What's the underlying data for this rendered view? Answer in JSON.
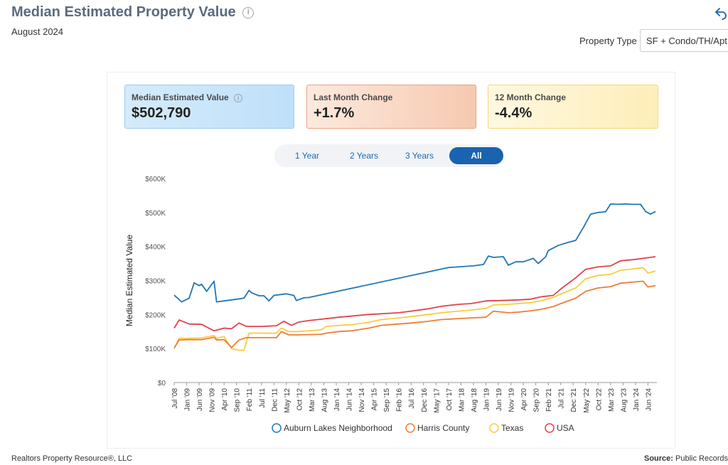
{
  "header": {
    "title": "Median Estimated Property Value",
    "date": "August 2024",
    "property_type_label": "Property Type",
    "property_type_value": "SF + Condo/TH/Apt"
  },
  "cards": {
    "median": {
      "label": "Median Estimated Value",
      "value": "$502,790"
    },
    "last_month": {
      "label": "Last Month Change",
      "value": "+1.7%"
    },
    "twelve_month": {
      "label": "12 Month Change",
      "value": "-4.4%"
    }
  },
  "range_buttons": [
    {
      "label": "1 Year",
      "active": false
    },
    {
      "label": "2 Years",
      "active": false
    },
    {
      "label": "3 Years",
      "active": false
    },
    {
      "label": "All",
      "active": true
    }
  ],
  "footer": {
    "left": "Realtors Property Resource®, LLC",
    "source_label": "Source:",
    "source_value": "Public Records"
  },
  "colors": {
    "auburn": "#1f77b4",
    "harris": "#ee7d34",
    "texas": "#f7cd3c",
    "usa": "#e0434b"
  },
  "chart_data": {
    "type": "line",
    "title": "",
    "xlabel": "",
    "ylabel": "Median Estimated Value",
    "ylim": [
      0,
      600000
    ],
    "yticks": [
      0,
      100000,
      200000,
      300000,
      400000,
      500000,
      600000
    ],
    "ytick_labels": [
      "$0",
      "$100K",
      "$200K",
      "$300K",
      "$400K",
      "$500K",
      "$600K"
    ],
    "x_start": "2008-07",
    "x_end": "2024-08",
    "x_tick_labels": [
      "Jul '08",
      "Jan '09",
      "Jun '09",
      "Nov '09",
      "Apr '10",
      "Sep '10",
      "Feb '11",
      "Jul '11",
      "Dec '11",
      "May '12",
      "Oct '12",
      "Mar '13",
      "Aug '13",
      "Jan '14",
      "Jun '14",
      "Nov '14",
      "Apr '15",
      "Sep '15",
      "Feb '16",
      "Jul '16",
      "Dec '16",
      "May '17",
      "Oct '17",
      "Mar '18",
      "Aug '18",
      "Jan '19",
      "Jun '19",
      "Nov '19",
      "Apr '20",
      "Sep '20",
      "Feb '21",
      "Jul '21",
      "Dec '21",
      "May '22",
      "Oct '22",
      "Mar '23",
      "Aug '23",
      "Jan '24",
      "Jun '24"
    ],
    "legend_position": "bottom",
    "series": [
      {
        "name": "Auburn Lakes Neighborhood",
        "color_key": "auburn",
        "points": [
          [
            "2008-07",
            257000
          ],
          [
            "2008-10",
            237000
          ],
          [
            "2009-01",
            248000
          ],
          [
            "2009-03",
            293000
          ],
          [
            "2009-05",
            285000
          ],
          [
            "2009-06",
            289000
          ],
          [
            "2009-08",
            268000
          ],
          [
            "2009-11",
            298000
          ],
          [
            "2009-12",
            237000
          ],
          [
            "2010-03",
            240000
          ],
          [
            "2010-06",
            243000
          ],
          [
            "2010-09",
            246000
          ],
          [
            "2010-11",
            248000
          ],
          [
            "2011-01",
            271000
          ],
          [
            "2011-02",
            264000
          ],
          [
            "2011-05",
            255000
          ],
          [
            "2011-07",
            255000
          ],
          [
            "2011-09",
            240000
          ],
          [
            "2011-11",
            256000
          ],
          [
            "2012-04",
            261000
          ],
          [
            "2012-07",
            256000
          ],
          [
            "2012-08",
            241000
          ],
          [
            "2012-11",
            249000
          ],
          [
            "2013-01",
            250000
          ],
          [
            "2017-09",
            338000
          ],
          [
            "2018-07",
            343000
          ],
          [
            "2018-11",
            347000
          ],
          [
            "2019-01",
            372000
          ],
          [
            "2019-03",
            368000
          ],
          [
            "2019-07",
            370000
          ],
          [
            "2019-09",
            345000
          ],
          [
            "2019-12",
            355000
          ],
          [
            "2020-03",
            355000
          ],
          [
            "2020-07",
            365000
          ],
          [
            "2020-09",
            350000
          ],
          [
            "2020-12",
            370000
          ],
          [
            "2021-01",
            388000
          ],
          [
            "2021-05",
            403000
          ],
          [
            "2021-09",
            412000
          ],
          [
            "2021-12",
            418000
          ],
          [
            "2022-03",
            455000
          ],
          [
            "2022-06",
            495000
          ],
          [
            "2022-09",
            500000
          ],
          [
            "2022-12",
            502000
          ],
          [
            "2023-02",
            525000
          ],
          [
            "2023-05",
            524000
          ],
          [
            "2023-08",
            525000
          ],
          [
            "2023-11",
            524000
          ],
          [
            "2024-02",
            524000
          ],
          [
            "2024-04",
            503000
          ],
          [
            "2024-06",
            495000
          ],
          [
            "2024-08",
            503000
          ]
        ]
      },
      {
        "name": "Harris County",
        "color_key": "harris",
        "points": [
          [
            "2008-07",
            102000
          ],
          [
            "2008-09",
            125000
          ],
          [
            "2009-01",
            126000
          ],
          [
            "2009-06",
            126000
          ],
          [
            "2009-11",
            133000
          ],
          [
            "2009-12",
            125000
          ],
          [
            "2010-03",
            126000
          ],
          [
            "2010-06",
            103000
          ],
          [
            "2010-09",
            125000
          ],
          [
            "2010-12",
            132000
          ],
          [
            "2011-06",
            132000
          ],
          [
            "2011-12",
            132000
          ],
          [
            "2012-02",
            150000
          ],
          [
            "2012-05",
            140000
          ],
          [
            "2012-08",
            140000
          ],
          [
            "2013-01",
            141000
          ],
          [
            "2013-06",
            142000
          ],
          [
            "2013-08",
            145000
          ],
          [
            "2014-01",
            150000
          ],
          [
            "2014-06",
            152000
          ],
          [
            "2015-01",
            160000
          ],
          [
            "2015-06",
            168000
          ],
          [
            "2016-01",
            172000
          ],
          [
            "2016-06",
            175000
          ],
          [
            "2017-01",
            180000
          ],
          [
            "2017-06",
            185000
          ],
          [
            "2018-01",
            188000
          ],
          [
            "2018-06",
            190000
          ],
          [
            "2018-12",
            192000
          ],
          [
            "2019-03",
            210000
          ],
          [
            "2019-09",
            205000
          ],
          [
            "2020-01",
            207000
          ],
          [
            "2020-06",
            211000
          ],
          [
            "2020-10",
            215000
          ],
          [
            "2021-03",
            223000
          ],
          [
            "2021-06",
            232000
          ],
          [
            "2021-12",
            248000
          ],
          [
            "2022-04",
            268000
          ],
          [
            "2022-09",
            278000
          ],
          [
            "2023-02",
            282000
          ],
          [
            "2023-06",
            292000
          ],
          [
            "2023-12",
            296000
          ],
          [
            "2024-03",
            298000
          ],
          [
            "2024-05",
            281000
          ],
          [
            "2024-08",
            285000
          ]
        ]
      },
      {
        "name": "Texas",
        "color_key": "texas",
        "points": [
          [
            "2008-07",
            100000
          ],
          [
            "2008-09",
            130000
          ],
          [
            "2009-01",
            130000
          ],
          [
            "2009-06",
            131000
          ],
          [
            "2009-11",
            138000
          ],
          [
            "2009-12",
            130000
          ],
          [
            "2010-03",
            135000
          ],
          [
            "2010-06",
            100000
          ],
          [
            "2010-09",
            95000
          ],
          [
            "2010-11",
            95000
          ],
          [
            "2011-01",
            145000
          ],
          [
            "2011-06",
            145000
          ],
          [
            "2011-12",
            145000
          ],
          [
            "2012-02",
            160000
          ],
          [
            "2012-05",
            150000
          ],
          [
            "2012-08",
            150000
          ],
          [
            "2013-01",
            152000
          ],
          [
            "2013-06",
            155000
          ],
          [
            "2013-08",
            165000
          ],
          [
            "2014-01",
            168000
          ],
          [
            "2014-06",
            170000
          ],
          [
            "2015-01",
            177000
          ],
          [
            "2015-06",
            185000
          ],
          [
            "2016-01",
            190000
          ],
          [
            "2016-06",
            194000
          ],
          [
            "2017-01",
            200000
          ],
          [
            "2017-06",
            205000
          ],
          [
            "2018-01",
            210000
          ],
          [
            "2018-06",
            213000
          ],
          [
            "2018-12",
            218000
          ],
          [
            "2019-03",
            228000
          ],
          [
            "2019-09",
            230000
          ],
          [
            "2020-01",
            232000
          ],
          [
            "2020-06",
            235000
          ],
          [
            "2020-10",
            240000
          ],
          [
            "2021-03",
            250000
          ],
          [
            "2021-06",
            260000
          ],
          [
            "2021-12",
            278000
          ],
          [
            "2022-04",
            305000
          ],
          [
            "2022-09",
            315000
          ],
          [
            "2023-02",
            318000
          ],
          [
            "2023-06",
            330000
          ],
          [
            "2023-12",
            335000
          ],
          [
            "2024-03",
            338000
          ],
          [
            "2024-05",
            322000
          ],
          [
            "2024-08",
            328000
          ]
        ]
      },
      {
        "name": "USA",
        "color_key": "usa",
        "points": [
          [
            "2008-07",
            160000
          ],
          [
            "2008-09",
            184000
          ],
          [
            "2009-01",
            172000
          ],
          [
            "2009-06",
            171000
          ],
          [
            "2009-11",
            152000
          ],
          [
            "2010-03",
            160000
          ],
          [
            "2010-06",
            158000
          ],
          [
            "2010-09",
            175000
          ],
          [
            "2010-12",
            165000
          ],
          [
            "2011-06",
            165000
          ],
          [
            "2011-12",
            167000
          ],
          [
            "2012-03",
            180000
          ],
          [
            "2012-06",
            168000
          ],
          [
            "2012-09",
            178000
          ],
          [
            "2013-01",
            182000
          ],
          [
            "2014-01",
            192000
          ],
          [
            "2015-01",
            200000
          ],
          [
            "2016-01",
            205000
          ],
          [
            "2016-06",
            210000
          ],
          [
            "2017-01",
            217000
          ],
          [
            "2017-06",
            224000
          ],
          [
            "2018-01",
            230000
          ],
          [
            "2018-06",
            232000
          ],
          [
            "2018-12",
            240000
          ],
          [
            "2019-06",
            241000
          ],
          [
            "2020-01",
            243000
          ],
          [
            "2020-06",
            245000
          ],
          [
            "2020-10",
            252000
          ],
          [
            "2021-03",
            256000
          ],
          [
            "2021-06",
            275000
          ],
          [
            "2021-12",
            308000
          ],
          [
            "2022-04",
            333000
          ],
          [
            "2022-09",
            340000
          ],
          [
            "2023-02",
            343000
          ],
          [
            "2023-06",
            358000
          ],
          [
            "2023-12",
            362000
          ],
          [
            "2024-04",
            366000
          ],
          [
            "2024-08",
            370000
          ]
        ]
      }
    ]
  }
}
